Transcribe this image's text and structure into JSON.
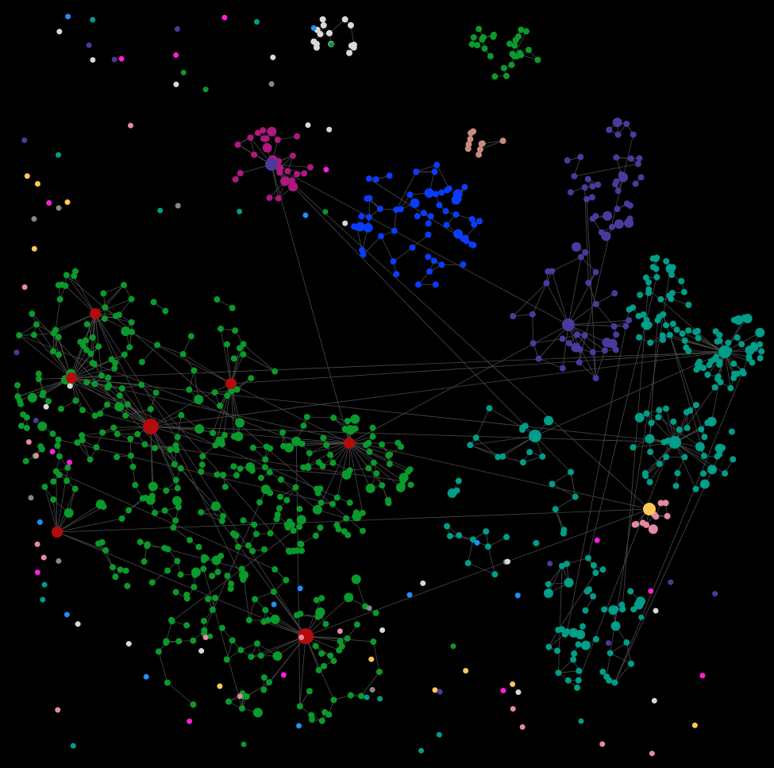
{
  "background": "#000000",
  "edge_color": "#4a4a4a",
  "clusters": [
    {
      "id": "green-main",
      "color": "#0a9a2c",
      "hub_color": "#b30c0c",
      "node_count": 420,
      "hub_count": 7
    },
    {
      "id": "blue",
      "color": "#0a3cff",
      "node_count": 60,
      "hub_count": 0
    },
    {
      "id": "magenta",
      "color": "#b0177f",
      "hub_color": "#4b3a9a",
      "node_count": 28,
      "hub_count": 1
    },
    {
      "id": "purple",
      "color": "#4a3a9e",
      "hub_color": "#4a3a9e",
      "node_count": 70,
      "hub_count": 1
    },
    {
      "id": "teal",
      "color": "#009e8a",
      "hub_color": "#009e8a",
      "node_count": 220,
      "hub_count": 3
    },
    {
      "id": "light-gray",
      "color": "#d9d9d9",
      "node_count": 15,
      "hub_count": 0
    },
    {
      "id": "green-top",
      "color": "#0a9a2c",
      "node_count": 28,
      "hub_count": 0
    },
    {
      "id": "pink-small",
      "color": "#e68aa0",
      "hub_color": "#ffc857",
      "node_count": 10,
      "hub_count": 1
    },
    {
      "id": "pink-top",
      "color": "#c98a80",
      "node_count": 10,
      "hub_count": 0
    }
  ],
  "isolated_colors": [
    "#1f8fff",
    "#ffc857",
    "#e68aa0",
    "#ff1fd8",
    "#4b3a9a",
    "#888888",
    "#009e8a",
    "#0a9a2c",
    "#d9d9d9"
  ]
}
